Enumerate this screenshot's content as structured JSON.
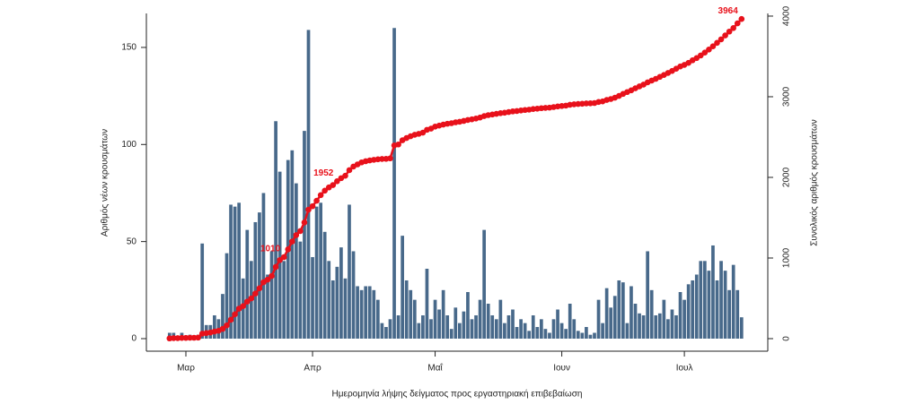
{
  "chart_data": {
    "type": "bar_line",
    "xlabel": "Ημερομηνία λήψης δείγματος προς εργαστηριακή επιβεβαίωση",
    "ylabel": "Αριθμός νέων κρουσμάτων",
    "y2label": "Συνολικός αριθμός κρουσμάτων",
    "categories": [
      null,
      null,
      null,
      null,
      "Μαρ",
      null,
      null,
      null,
      null,
      null,
      null,
      null,
      null,
      null,
      null,
      null,
      null,
      null,
      null,
      null,
      null,
      null,
      null,
      null,
      null,
      null,
      null,
      null,
      null,
      null,
      null,
      null,
      null,
      null,
      null,
      "Απρ",
      null,
      null,
      null,
      null,
      null,
      null,
      null,
      null,
      null,
      null,
      null,
      null,
      null,
      null,
      null,
      null,
      null,
      null,
      null,
      null,
      null,
      null,
      null,
      null,
      null,
      null,
      null,
      null,
      null,
      "Μαΐ",
      null,
      null,
      null,
      null,
      null,
      null,
      null,
      null,
      null,
      null,
      null,
      null,
      null,
      null,
      null,
      null,
      null,
      null,
      null,
      null,
      null,
      null,
      null,
      null,
      null,
      null,
      null,
      null,
      null,
      null,
      "Ιουν",
      null,
      null,
      null,
      null,
      null,
      null,
      null,
      null,
      null,
      null,
      null,
      null,
      null,
      null,
      null,
      null,
      null,
      null,
      null,
      null,
      null,
      null,
      null,
      null,
      null,
      null,
      null,
      null,
      null,
      "Ιουλ",
      null,
      null,
      null,
      null,
      null,
      null,
      null,
      null,
      null,
      null,
      null,
      null,
      null,
      null
    ],
    "series": [
      {
        "color": "#48698a",
        "axis": "y",
        "kind": "bar",
        "values": [
          3,
          3,
          0,
          3,
          0,
          2,
          0,
          2,
          49,
          7,
          7,
          12,
          10,
          23,
          44,
          69,
          68,
          70,
          31,
          56,
          40,
          60,
          65,
          75,
          33,
          45,
          112,
          86,
          40,
          92,
          97,
          80,
          50,
          107,
          159,
          42,
          68,
          70,
          55,
          40,
          30,
          37,
          47,
          31,
          69,
          45,
          27,
          25,
          27,
          27,
          25,
          20,
          8,
          6,
          10,
          160,
          12,
          53,
          30,
          25,
          20,
          8,
          12,
          36,
          10,
          20,
          15,
          25,
          12,
          5,
          16,
          8,
          14,
          24,
          10,
          12,
          20,
          56,
          18,
          12,
          10,
          20,
          8,
          12,
          15,
          6,
          10,
          8,
          4,
          12,
          6,
          10,
          5,
          3,
          10,
          15,
          8,
          5,
          18,
          10,
          4,
          3,
          6,
          2,
          3,
          20,
          8,
          26,
          16,
          22,
          30,
          29,
          8,
          27,
          18,
          13,
          12,
          45,
          25,
          12,
          13,
          20,
          10,
          15,
          12,
          24,
          20,
          28,
          30,
          33,
          40,
          40,
          35,
          48,
          30,
          40,
          35,
          25,
          38,
          25,
          11
        ]
      },
      {
        "color": "#e8111b",
        "axis": "y2",
        "kind": "line",
        "values": [
          3,
          6,
          6,
          9,
          9,
          11,
          11,
          13,
          62,
          69,
          76,
          88,
          98,
          121,
          165,
          234,
          302,
          372,
          403,
          459,
          499,
          559,
          624,
          699,
          732,
          777,
          889,
          975,
          1010,
          1107,
          1204,
          1284,
          1334,
          1441,
          1600,
          1642,
          1710,
          1780,
          1835,
          1875,
          1905,
          1952,
          1990,
          2020,
          2089,
          2134,
          2161,
          2186,
          2200,
          2210,
          2218,
          2224,
          2228,
          2230,
          2236,
          2396,
          2408,
          2460,
          2488,
          2510,
          2528,
          2540,
          2555,
          2590,
          2605,
          2630,
          2642,
          2655,
          2665,
          2672,
          2683,
          2690,
          2700,
          2712,
          2720,
          2730,
          2742,
          2760,
          2772,
          2780,
          2788,
          2796,
          2802,
          2810,
          2818,
          2823,
          2830,
          2836,
          2840,
          2848,
          2852,
          2858,
          2862,
          2865,
          2872,
          2880,
          2885,
          2890,
          2900,
          2906,
          2910,
          2913,
          2917,
          2919,
          2922,
          2935,
          2942,
          2960,
          2972,
          2988,
          3010,
          3035,
          3058,
          3080,
          3105,
          3128,
          3150,
          3178,
          3200,
          3222,
          3246,
          3270,
          3295,
          3320,
          3348,
          3375,
          3395,
          3420,
          3452,
          3480,
          3512,
          3548,
          3585,
          3625,
          3668,
          3712,
          3760,
          3808,
          3852,
          3910,
          3964
        ],
        "value_labels": [
          null,
          null,
          null,
          null,
          null,
          null,
          null,
          null,
          null,
          null,
          null,
          null,
          null,
          null,
          null,
          null,
          null,
          null,
          null,
          null,
          null,
          null,
          null,
          null,
          null,
          null,
          null,
          null,
          "1010",
          null,
          null,
          null,
          null,
          null,
          null,
          null,
          null,
          null,
          null,
          null,
          null,
          "1952",
          null,
          null,
          null,
          null,
          null,
          null,
          null,
          null,
          null,
          null,
          null,
          null,
          null,
          null,
          null,
          null,
          null,
          null,
          null,
          null,
          null,
          null,
          null,
          null,
          null,
          null,
          null,
          null,
          null,
          null,
          null,
          null,
          null,
          null,
          null,
          null,
          null,
          null,
          null,
          null,
          null,
          null,
          null,
          null,
          null,
          null,
          null,
          null,
          null,
          null,
          null,
          null,
          null,
          null,
          null,
          null,
          null,
          null,
          null,
          null,
          null,
          null,
          null,
          null,
          null,
          null,
          null,
          null,
          null,
          null,
          null,
          null,
          null,
          null,
          null,
          null,
          null,
          null,
          null,
          null,
          null,
          null,
          null,
          null,
          null,
          null,
          null,
          null,
          null,
          null,
          null,
          null,
          null,
          null,
          null,
          null,
          null,
          null,
          "3964"
        ]
      }
    ],
    "ylim": [
      0,
      167.5
    ],
    "yticks": [
      0,
      50,
      100,
      150
    ],
    "y2lim": [
      0,
      4033
    ],
    "y2ticks": [
      0,
      1000,
      2000,
      3000,
      4000
    ]
  }
}
